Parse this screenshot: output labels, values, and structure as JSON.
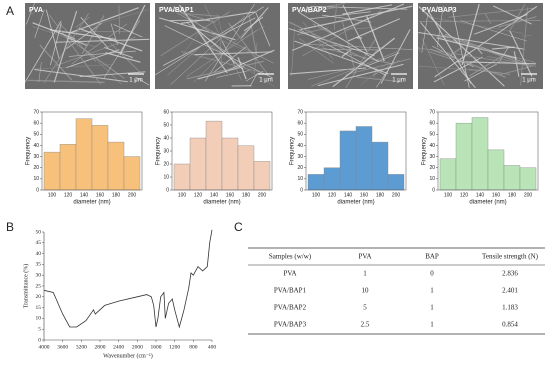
{
  "panels": [
    "A",
    "B",
    "C"
  ],
  "sem": [
    {
      "label": "PVA",
      "scale": "1 μm"
    },
    {
      "label": "PVA/BAP1",
      "scale": "1 μm"
    },
    {
      "label": "PVA/BAP2",
      "scale": "1 μm"
    },
    {
      "label": "PVA/BAP3",
      "scale": "1 μm"
    }
  ],
  "chart_data": [
    {
      "type": "bar",
      "x_label": "diameter (nm)",
      "y_label": "Frequency",
      "categories": [
        "100",
        "120",
        "140",
        "160",
        "180",
        "200"
      ],
      "values": [
        34,
        41,
        64,
        58,
        43,
        30
      ],
      "color": "#f7c17c",
      "ylim": [
        0,
        70
      ],
      "yticks": [
        0,
        10,
        20,
        30,
        40,
        50,
        60,
        70
      ]
    },
    {
      "type": "bar",
      "x_label": "diameter (nm)",
      "y_label": "Frequency",
      "categories": [
        "100",
        "120",
        "140",
        "160",
        "180",
        "200"
      ],
      "values": [
        20,
        40,
        53,
        40,
        34,
        22
      ],
      "color": "#f2cdb8",
      "ylim": [
        0,
        60
      ],
      "yticks": [
        0,
        10,
        20,
        30,
        40,
        50,
        60
      ]
    },
    {
      "type": "bar",
      "x_label": "diameter (nm)",
      "y_label": "Frequency",
      "categories": [
        "100",
        "120",
        "140",
        "160",
        "180",
        "200"
      ],
      "values": [
        14,
        20,
        53,
        57,
        43,
        14
      ],
      "color": "#5d9bd3",
      "ylim": [
        0,
        70
      ],
      "yticks": [
        0,
        10,
        20,
        30,
        40,
        50,
        60,
        70
      ]
    },
    {
      "type": "bar",
      "x_label": "diameter (nm)",
      "y_label": "Frequency",
      "categories": [
        "100",
        "120",
        "140",
        "160",
        "180",
        "200"
      ],
      "values": [
        28,
        60,
        65,
        36,
        22,
        20
      ],
      "color": "#b8e4b8",
      "ylim": [
        0,
        70
      ],
      "yticks": [
        0,
        10,
        20,
        30,
        40,
        50,
        60,
        70
      ]
    },
    {
      "type": "line",
      "x_label": "Wavenumber (cm⁻¹)",
      "y_label": "Transmittance (%)",
      "color": "#333333",
      "x": [
        4000,
        3800,
        3600,
        3450,
        3300,
        3100,
        2940,
        2900,
        2700,
        2400,
        2000,
        1800,
        1700,
        1650,
        1600,
        1560,
        1500,
        1430,
        1400,
        1330,
        1250,
        1200,
        1100,
        1050,
        1000,
        900,
        850,
        800,
        700,
        600,
        500,
        450,
        400
      ],
      "y": [
        23,
        22,
        12,
        6,
        6,
        9,
        14,
        12,
        16,
        18,
        20,
        21,
        20,
        16,
        6,
        10,
        20,
        22,
        10,
        17,
        19,
        14,
        6,
        10,
        14,
        24,
        31,
        30,
        34,
        32,
        34,
        45,
        51
      ],
      "xlim": [
        4000,
        400
      ],
      "xticks": [
        4000,
        3600,
        3200,
        2800,
        2400,
        2000,
        1600,
        1200,
        800,
        400
      ],
      "ylim": [
        0,
        50
      ],
      "yticks": [
        0,
        5,
        10,
        15,
        20,
        25,
        30,
        35,
        40,
        45,
        50
      ]
    }
  ],
  "table": {
    "header": [
      "Samples (w/w)",
      "PVA",
      "BAP",
      "Tensile strength (N)"
    ],
    "rows": [
      [
        "PVA",
        "1",
        "0",
        "2.836"
      ],
      [
        "PVA/BAP1",
        "10",
        "1",
        "2.401"
      ],
      [
        "PVA/BAP2",
        "5",
        "1",
        "1.183"
      ],
      [
        "PVA/BAP3",
        "2.5",
        "1",
        "0.854"
      ]
    ]
  }
}
